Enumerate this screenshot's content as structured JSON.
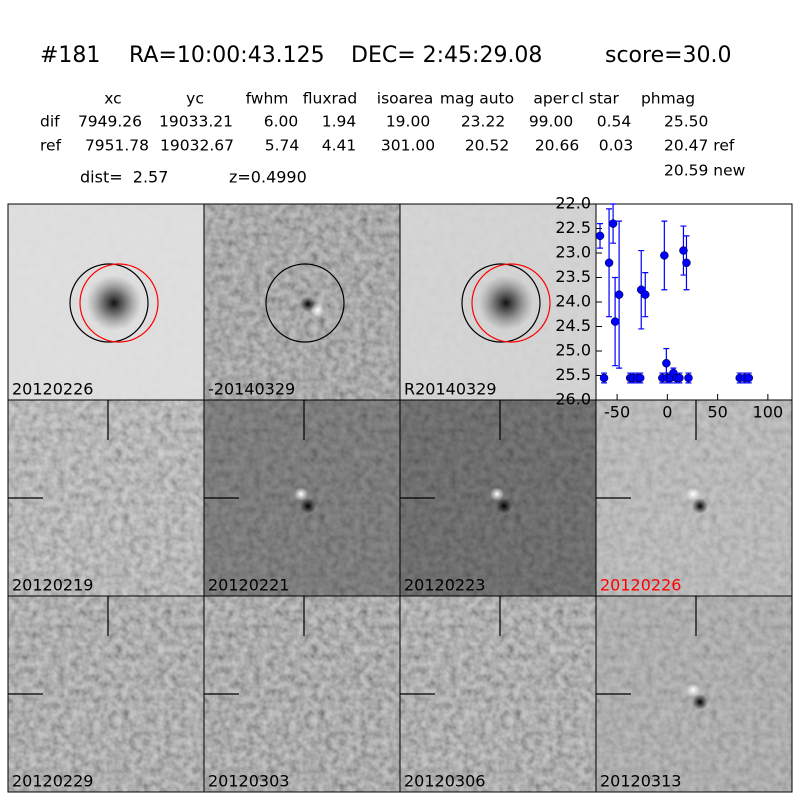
{
  "header": {
    "id": "#181",
    "ra": "RA=10:00:43.125",
    "dec": "DEC= 2:45:29.08",
    "score": "score=30.0"
  },
  "table": {
    "columns": [
      "xc",
      "yc",
      "fwhm",
      "fluxrad",
      "isoarea",
      "mag auto",
      "aper",
      "cl star",
      "phmag"
    ],
    "rows": [
      [
        "dif",
        "7949.26",
        "19033.21",
        "6.00",
        "1.94",
        "19.00",
        "23.22",
        "99.00",
        "0.54",
        "25.50"
      ],
      [
        "ref",
        "7951.78",
        "19032.67",
        "5.74",
        "4.41",
        "301.00",
        "20.52",
        "20.66",
        "0.03",
        "20.47 ref"
      ]
    ],
    "new": "20.59 new"
  },
  "dist": "dist=  2.57",
  "z": "z=0.4990",
  "panels": [
    {
      "label": "20120226"
    },
    {
      "label": "-20140329"
    },
    {
      "label": "R20140329"
    },
    {
      "label": "20120219"
    },
    {
      "label": "20120221"
    },
    {
      "label": "20120223"
    },
    {
      "label": "20120226",
      "label_color": "#ff0000"
    },
    {
      "label": "20120229"
    },
    {
      "label": "20120303"
    },
    {
      "label": "20120306"
    },
    {
      "label": "20120313"
    }
  ],
  "chart_data": {
    "type": "errorbar",
    "xlim": [
      -71,
      124
    ],
    "xticks": [
      -50,
      0,
      50,
      100
    ],
    "ylim": [
      22.0,
      26.0
    ],
    "y_inverted": true,
    "yticks": [
      {
        "value": 22,
        "label": "22.0"
      },
      {
        "value": 22.5,
        "label": "22.5"
      },
      {
        "value": 23,
        "label": "23.0"
      },
      {
        "value": 23.5,
        "label": "23.5"
      },
      {
        "value": 24,
        "label": "24.0"
      },
      {
        "value": 24.5,
        "label": "24.5"
      },
      {
        "value": 25,
        "label": "25.0"
      },
      {
        "value": 25.5,
        "label": "25.5"
      },
      {
        "value": 26,
        "label": "26.0"
      }
    ],
    "series": [
      {
        "color": "#0000ff",
        "x": [
          -67,
          -63,
          -58,
          -54,
          -52,
          -48,
          -37,
          -34,
          -30,
          -27,
          -26,
          -22,
          -3,
          -1,
          -5,
          0,
          3,
          6,
          9,
          12,
          16,
          19,
          21,
          72,
          77,
          81
        ],
        "values": [
          22.65,
          25.55,
          23.2,
          22.4,
          24.4,
          23.85,
          25.55,
          25.55,
          25.55,
          25.55,
          23.75,
          23.85,
          23.05,
          25.25,
          25.55,
          25.55,
          25.55,
          25.45,
          25.55,
          25.55,
          22.95,
          23.2,
          25.55,
          25.55,
          25.55,
          25.55
        ],
        "errors": [
          0.25,
          0.1,
          1.1,
          0.4,
          0.9,
          1.5,
          0.1,
          0.1,
          0.1,
          0.1,
          0.8,
          0.45,
          0.7,
          0.3,
          0.1,
          0.1,
          0.1,
          0.1,
          0.1,
          0.1,
          0.5,
          0.55,
          0.1,
          0.1,
          0.1,
          0.1
        ]
      }
    ]
  }
}
